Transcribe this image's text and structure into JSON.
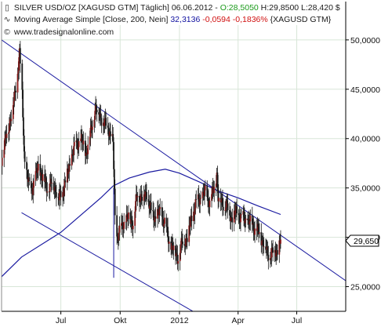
{
  "header": {
    "line1_icon": "candlestick-icon",
    "line1_prefix": "SILVER USD/OZ [XAGUSD GTM]  Täglich] 06.06.2012 - ",
    "line1_open": "O:28,5050",
    "line1_rest": " H:29,8500 L:28,420",
    "line1_close_tail": " $",
    "line2_icon": "line-icon",
    "line2_prefix": "Moving Average Simple [Close, 200, Nein] ",
    "line2_value": "32,3136",
    "line2_change": " -0,0594 -0,1836%",
    "line2_suffix": " {XAGUSD GTM}",
    "line3_icon": "copyright-icon",
    "line3_text": "www.tradesignalonline.com"
  },
  "colors": {
    "price_up": "#1a9a1a",
    "price_down": "#d01010",
    "candle_body": "#8b1a1a",
    "candle_wick": "#1a1a1a",
    "moving_average": "#1a1aa0",
    "trendline": "#1a1aa0",
    "grid": "#d8e6d8",
    "axis": "#000000"
  },
  "chart_data": {
    "type": "candlestick",
    "instrument": "SILVER USD/OZ [XAGUSD GTM]",
    "period": "Täglich",
    "x_ticks": [
      {
        "label": "Jul",
        "date": "2011-07-01"
      },
      {
        "label": "Okt",
        "date": "2011-10-01"
      },
      {
        "label": "2012",
        "date": "2012-01-01"
      },
      {
        "label": "Apr",
        "date": "2012-04-01"
      },
      {
        "label": "Jul",
        "date": "2012-07-01"
      }
    ],
    "y_ticks": [
      "25,0000",
      "30,0000",
      "35,0000",
      "40,0000",
      "45,0000",
      "50,0000"
    ],
    "ylim": [
      22.5,
      51.5
    ],
    "xlim": [
      "2011-03-31",
      "2012-09-15"
    ],
    "grid": true,
    "last_price_label": "29,650",
    "last_price": 29.65,
    "price_path": [
      [
        "2011-03-31",
        38.0
      ],
      [
        "2011-04-05",
        39.5
      ],
      [
        "2011-04-10",
        41.0
      ],
      [
        "2011-04-15",
        42.5
      ],
      [
        "2011-04-20",
        44.0
      ],
      [
        "2011-04-25",
        47.0
      ],
      [
        "2011-04-28",
        48.7
      ],
      [
        "2011-05-02",
        44.5
      ],
      [
        "2011-05-05",
        38.5
      ],
      [
        "2011-05-10",
        36.0
      ],
      [
        "2011-05-15",
        34.5
      ],
      [
        "2011-05-20",
        35.5
      ],
      [
        "2011-05-27",
        37.0
      ],
      [
        "2011-06-03",
        36.0
      ],
      [
        "2011-06-10",
        35.0
      ],
      [
        "2011-06-17",
        35.5
      ],
      [
        "2011-06-24",
        34.8
      ],
      [
        "2011-06-28",
        33.8
      ],
      [
        "2011-07-05",
        35.0
      ],
      [
        "2011-07-12",
        36.5
      ],
      [
        "2011-07-19",
        38.5
      ],
      [
        "2011-07-26",
        39.5
      ],
      [
        "2011-08-02",
        39.8
      ],
      [
        "2011-08-09",
        38.5
      ],
      [
        "2011-08-16",
        40.5
      ],
      [
        "2011-08-23",
        43.0
      ],
      [
        "2011-08-30",
        42.5
      ],
      [
        "2011-09-06",
        41.5
      ],
      [
        "2011-09-13",
        41.0
      ],
      [
        "2011-09-20",
        39.5
      ],
      [
        "2011-09-23",
        32.0
      ],
      [
        "2011-09-26",
        30.0
      ],
      [
        "2011-09-30",
        30.5
      ],
      [
        "2011-10-07",
        31.5
      ],
      [
        "2011-10-14",
        32.0
      ],
      [
        "2011-10-21",
        31.5
      ],
      [
        "2011-10-28",
        34.5
      ],
      [
        "2011-11-04",
        34.0
      ],
      [
        "2011-11-11",
        34.5
      ],
      [
        "2011-11-18",
        32.5
      ],
      [
        "2011-11-25",
        32.0
      ],
      [
        "2011-12-02",
        32.5
      ],
      [
        "2011-12-09",
        31.5
      ],
      [
        "2011-12-16",
        29.5
      ],
      [
        "2011-12-23",
        28.8
      ],
      [
        "2011-12-29",
        28.0
      ],
      [
        "2012-01-06",
        29.5
      ],
      [
        "2012-01-13",
        30.0
      ],
      [
        "2012-01-20",
        32.0
      ],
      [
        "2012-01-27",
        33.5
      ],
      [
        "2012-02-03",
        34.0
      ],
      [
        "2012-02-10",
        34.5
      ],
      [
        "2012-02-17",
        33.5
      ],
      [
        "2012-02-24",
        35.0
      ],
      [
        "2012-02-28",
        36.5
      ],
      [
        "2012-03-01",
        34.0
      ],
      [
        "2012-03-08",
        33.5
      ],
      [
        "2012-03-15",
        33.0
      ],
      [
        "2012-03-22",
        32.0
      ],
      [
        "2012-03-29",
        32.5
      ],
      [
        "2012-04-05",
        32.0
      ],
      [
        "2012-04-12",
        31.8
      ],
      [
        "2012-04-19",
        31.5
      ],
      [
        "2012-04-26",
        31.0
      ],
      [
        "2012-05-03",
        30.5
      ],
      [
        "2012-05-10",
        29.5
      ],
      [
        "2012-05-17",
        28.3
      ],
      [
        "2012-05-24",
        28.5
      ],
      [
        "2012-05-31",
        28.6
      ],
      [
        "2012-06-06",
        29.65
      ]
    ],
    "moving_average_path": [
      [
        "2011-03-31",
        26.0
      ],
      [
        "2011-05-01",
        28.0
      ],
      [
        "2011-07-01",
        30.5
      ],
      [
        "2011-09-01",
        34.0
      ],
      [
        "2011-09-20",
        35.2
      ],
      [
        "2011-10-15",
        36.0
      ],
      [
        "2011-11-15",
        36.6
      ],
      [
        "2011-12-10",
        36.9
      ],
      [
        "2012-01-01",
        36.5
      ],
      [
        "2012-02-01",
        35.6
      ],
      [
        "2012-03-01",
        34.7
      ],
      [
        "2012-04-01",
        34.0
      ],
      [
        "2012-05-01",
        33.2
      ],
      [
        "2012-06-06",
        32.31
      ]
    ],
    "trendlines": [
      {
        "start": [
          "2011-03-31",
          50.0
        ],
        "end": [
          "2012-09-15",
          25.6
        ]
      },
      {
        "start": [
          "2011-05-01",
          32.5
        ],
        "end": [
          "2012-03-15",
          20.5
        ]
      },
      {
        "start": [
          "2011-09-21",
          25.9
        ],
        "end": [
          "2011-09-21",
          35.0
        ]
      }
    ]
  }
}
